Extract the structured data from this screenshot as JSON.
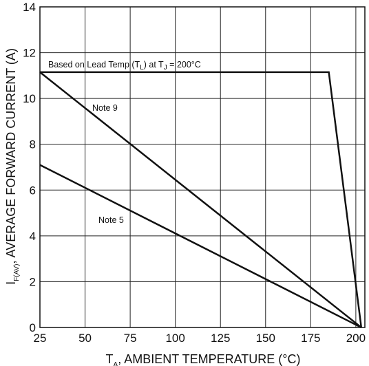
{
  "chart_data": {
    "type": "line",
    "x_label": {
      "base": "T",
      "sub": "A",
      "rest": ", AMBIENT TEMPERATURE (°C)"
    },
    "y_label": {
      "base": "I",
      "sub": "F(AV)",
      "rest": ", AVERAGE FORWARD CURRENT (A)"
    },
    "x_ticks": [
      25,
      50,
      75,
      100,
      125,
      150,
      175,
      200
    ],
    "y_ticks": [
      0,
      2,
      4,
      6,
      8,
      10,
      12,
      14
    ],
    "xlim": [
      25,
      205
    ],
    "ylim": [
      0,
      14
    ],
    "grid": true,
    "series": [
      {
        "name": "Based on Lead Temp (TL) at TJ = 200°C",
        "points": [
          [
            25,
            11.15
          ],
          [
            185,
            11.15
          ],
          [
            203,
            0
          ]
        ]
      },
      {
        "name": "Note 9",
        "points": [
          [
            25,
            11.15
          ],
          [
            203,
            0
          ]
        ]
      },
      {
        "name": "Note 5",
        "points": [
          [
            25,
            7.1
          ],
          [
            203,
            0
          ]
        ]
      }
    ],
    "annotations": {
      "lead_temp": {
        "prefix": "Based on Lead Temp (T",
        "sub1": "L",
        "mid": ") at T",
        "sub2": "J",
        "suffix": " = 200°C"
      },
      "note9": "Note 9",
      "note5": "Note 5"
    }
  }
}
